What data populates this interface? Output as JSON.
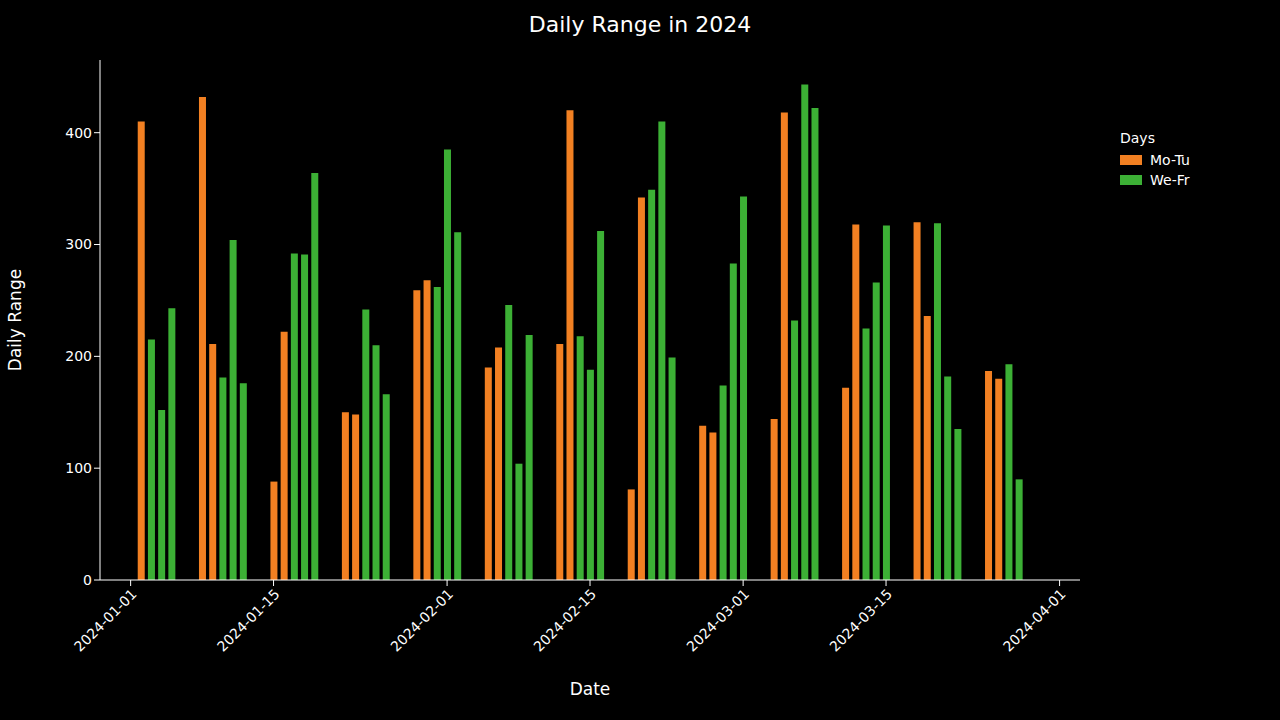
{
  "chart_data": {
    "type": "bar",
    "title": "Daily Range in 2024",
    "x_label": "Date",
    "y_label": "Daily Range",
    "legend_title": "Days",
    "legend": "right",
    "grid": false,
    "x": [
      "2024-01-02",
      "2024-01-03",
      "2024-01-04",
      "2024-01-05",
      "2024-01-08",
      "2024-01-09",
      "2024-01-10",
      "2024-01-11",
      "2024-01-12",
      "2024-01-15",
      "2024-01-16",
      "2024-01-17",
      "2024-01-18",
      "2024-01-19",
      "2024-01-22",
      "2024-01-23",
      "2024-01-24",
      "2024-01-25",
      "2024-01-26",
      "2024-01-29",
      "2024-01-30",
      "2024-01-31",
      "2024-02-01",
      "2024-02-02",
      "2024-02-05",
      "2024-02-06",
      "2024-02-07",
      "2024-02-08",
      "2024-02-09",
      "2024-02-12",
      "2024-02-13",
      "2024-02-14",
      "2024-02-15",
      "2024-02-16",
      "2024-02-19",
      "2024-02-20",
      "2024-02-21",
      "2024-02-22",
      "2024-02-23",
      "2024-02-26",
      "2024-02-27",
      "2024-02-28",
      "2024-02-29",
      "2024-03-01",
      "2024-03-04",
      "2024-03-05",
      "2024-03-06",
      "2024-03-07",
      "2024-03-08",
      "2024-03-11",
      "2024-03-12",
      "2024-03-13",
      "2024-03-14",
      "2024-03-15",
      "2024-03-18",
      "2024-03-19",
      "2024-03-20",
      "2024-03-21",
      "2024-03-22",
      "2024-03-25",
      "2024-03-26",
      "2024-03-27",
      "2024-03-28"
    ],
    "series": [
      {
        "name": "Mo-Tu",
        "color": "#f28022",
        "values": [
          410,
          null,
          null,
          null,
          432,
          211,
          null,
          null,
          null,
          88,
          222,
          null,
          null,
          null,
          150,
          148,
          null,
          null,
          null,
          259,
          268,
          null,
          null,
          null,
          190,
          208,
          null,
          null,
          null,
          211,
          420,
          null,
          null,
          null,
          81,
          342,
          null,
          null,
          null,
          138,
          132,
          null,
          null,
          null,
          144,
          418,
          null,
          null,
          null,
          172,
          318,
          null,
          null,
          null,
          320,
          236,
          null,
          null,
          null,
          187,
          180,
          null,
          null
        ]
      },
      {
        "name": "We-Fr",
        "color": "#3cb035",
        "values": [
          null,
          215,
          152,
          243,
          null,
          null,
          181,
          304,
          176,
          null,
          null,
          292,
          291,
          364,
          null,
          null,
          242,
          210,
          166,
          null,
          null,
          262,
          385,
          311,
          null,
          null,
          246,
          104,
          219,
          null,
          null,
          218,
          188,
          312,
          null,
          null,
          349,
          410,
          199,
          null,
          null,
          174,
          283,
          343,
          null,
          null,
          232,
          443,
          422,
          null,
          null,
          225,
          266,
          317,
          null,
          null,
          319,
          182,
          135,
          null,
          null,
          193,
          90
        ]
      }
    ],
    "xlim": [
      "2023-12-29",
      "2024-04-03"
    ],
    "xticks": [
      "2024-01-01",
      "2024-01-15",
      "2024-02-01",
      "2024-02-15",
      "2024-03-01",
      "2024-03-15",
      "2024-04-01"
    ],
    "ylim": [
      0,
      465
    ],
    "yticks": [
      0,
      100,
      200,
      300,
      400
    ]
  }
}
